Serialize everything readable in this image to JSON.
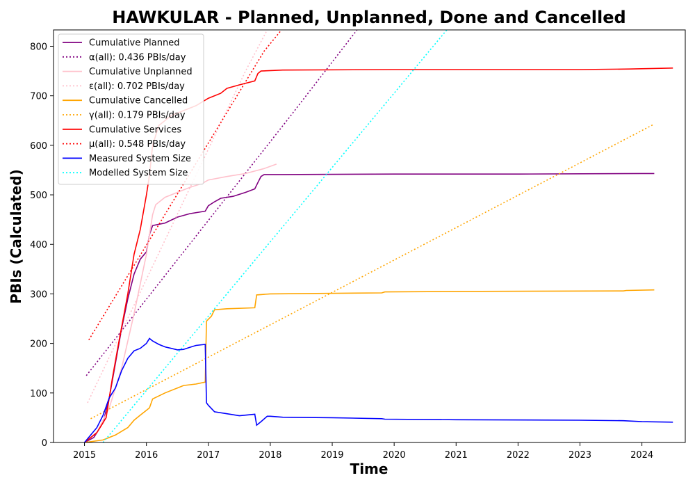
{
  "chart_data": {
    "type": "line",
    "title": "HAWKULAR - Planned, Unplanned, Done  and Cancelled",
    "xlabel": "Time",
    "ylabel": "PBIs (Calculated)",
    "xlim": [
      2014.5,
      2024.7
    ],
    "ylim": [
      0,
      833
    ],
    "x_ticks": [
      "2015",
      "2016",
      "2017",
      "2018",
      "2019",
      "2020",
      "2021",
      "2022",
      "2023",
      "2024"
    ],
    "y_ticks": [
      "0",
      "100",
      "200",
      "300",
      "400",
      "500",
      "600",
      "700",
      "800"
    ],
    "grid": false,
    "legend_position": "upper-left",
    "series": [
      {
        "name": "Cumulative Planned",
        "color": "#800080",
        "dash": "solid",
        "points": [
          [
            2015.0,
            0
          ],
          [
            2015.15,
            10
          ],
          [
            2015.3,
            40
          ],
          [
            2015.4,
            90
          ],
          [
            2015.5,
            160
          ],
          [
            2015.6,
            230
          ],
          [
            2015.7,
            290
          ],
          [
            2015.8,
            340
          ],
          [
            2015.9,
            370
          ],
          [
            2016.0,
            385
          ],
          [
            2016.05,
            420
          ],
          [
            2016.1,
            438
          ],
          [
            2016.3,
            443
          ],
          [
            2016.5,
            455
          ],
          [
            2016.7,
            462
          ],
          [
            2016.95,
            467
          ],
          [
            2017.0,
            478
          ],
          [
            2017.1,
            486
          ],
          [
            2017.2,
            493
          ],
          [
            2017.4,
            497
          ],
          [
            2017.6,
            505
          ],
          [
            2017.75,
            512
          ],
          [
            2017.8,
            525
          ],
          [
            2017.85,
            537
          ],
          [
            2017.9,
            541
          ],
          [
            2018.2,
            541
          ],
          [
            2020.0,
            542
          ],
          [
            2022.0,
            542
          ],
          [
            2024.0,
            543
          ],
          [
            2024.2,
            543
          ]
        ]
      },
      {
        "name": "α(all): 0.436 PBIs/day",
        "color": "#800080",
        "dash": "dotted",
        "points": [
          [
            2015.03,
            135
          ],
          [
            2018.3,
            655
          ],
          [
            2019.4,
            833
          ]
        ]
      },
      {
        "name": "Cumulative Unplanned",
        "color": "#ffc0cb",
        "dash": "solid",
        "points": [
          [
            2015.0,
            0
          ],
          [
            2015.2,
            20
          ],
          [
            2015.4,
            70
          ],
          [
            2015.6,
            150
          ],
          [
            2015.8,
            260
          ],
          [
            2015.9,
            320
          ],
          [
            2016.0,
            380
          ],
          [
            2016.05,
            420
          ],
          [
            2016.1,
            460
          ],
          [
            2016.15,
            480
          ],
          [
            2016.3,
            495
          ],
          [
            2016.5,
            505
          ],
          [
            2016.7,
            515
          ],
          [
            2016.9,
            523
          ],
          [
            2017.0,
            530
          ],
          [
            2017.3,
            537
          ],
          [
            2017.6,
            543
          ],
          [
            2017.9,
            553
          ],
          [
            2018.1,
            562
          ]
        ]
      },
      {
        "name": "ε(all): 0.702 PBIs/day",
        "color": "#ffc0cb",
        "dash": "dotted",
        "points": [
          [
            2015.05,
            80
          ],
          [
            2017.6,
            750
          ],
          [
            2017.95,
            833
          ]
        ]
      },
      {
        "name": "Cumulative Cancelled",
        "color": "#ffa500",
        "dash": "solid",
        "points": [
          [
            2015.0,
            0
          ],
          [
            2015.3,
            5
          ],
          [
            2015.5,
            15
          ],
          [
            2015.7,
            30
          ],
          [
            2015.8,
            45
          ],
          [
            2015.9,
            55
          ],
          [
            2016.0,
            65
          ],
          [
            2016.05,
            70
          ],
          [
            2016.1,
            88
          ],
          [
            2016.3,
            100
          ],
          [
            2016.5,
            110
          ],
          [
            2016.6,
            115
          ],
          [
            2016.8,
            118
          ],
          [
            2016.95,
            122
          ],
          [
            2016.97,
            245
          ],
          [
            2017.05,
            255
          ],
          [
            2017.1,
            268
          ],
          [
            2017.3,
            270
          ],
          [
            2017.75,
            272
          ],
          [
            2017.78,
            298
          ],
          [
            2018.0,
            300
          ],
          [
            2019.8,
            302
          ],
          [
            2019.85,
            304
          ],
          [
            2021.0,
            305
          ],
          [
            2023.7,
            306
          ],
          [
            2023.75,
            307
          ],
          [
            2024.2,
            308
          ]
        ]
      },
      {
        "name": "γ(all): 0.179 PBIs/day",
        "color": "#ffa500",
        "dash": "dotted",
        "points": [
          [
            2015.1,
            48
          ],
          [
            2024.2,
            643
          ]
        ]
      },
      {
        "name": "Cumulative Services",
        "color": "#ff0000",
        "dash": "solid",
        "points": [
          [
            2015.0,
            0
          ],
          [
            2015.2,
            20
          ],
          [
            2015.35,
            50
          ],
          [
            2015.45,
            130
          ],
          [
            2015.55,
            200
          ],
          [
            2015.7,
            300
          ],
          [
            2015.8,
            380
          ],
          [
            2015.9,
            430
          ],
          [
            2016.0,
            500
          ],
          [
            2016.05,
            540
          ],
          [
            2016.1,
            600
          ],
          [
            2016.2,
            640
          ],
          [
            2016.4,
            660
          ],
          [
            2016.6,
            670
          ],
          [
            2016.8,
            680
          ],
          [
            2017.0,
            695
          ],
          [
            2017.2,
            705
          ],
          [
            2017.3,
            715
          ],
          [
            2017.5,
            722
          ],
          [
            2017.75,
            730
          ],
          [
            2017.8,
            745
          ],
          [
            2017.85,
            750
          ],
          [
            2018.2,
            752
          ],
          [
            2020.0,
            753
          ],
          [
            2023.0,
            753
          ],
          [
            2023.8,
            754
          ],
          [
            2024.5,
            756
          ]
        ]
      },
      {
        "name": "μ(all): 0.548 PBIs/day",
        "color": "#ff0000",
        "dash": "dotted",
        "points": [
          [
            2015.07,
            207
          ],
          [
            2017.9,
            790
          ],
          [
            2018.18,
            833
          ]
        ]
      },
      {
        "name": "Measured System Size",
        "color": "#0000ff",
        "dash": "solid",
        "points": [
          [
            2015.0,
            0
          ],
          [
            2015.1,
            15
          ],
          [
            2015.2,
            30
          ],
          [
            2015.3,
            55
          ],
          [
            2015.4,
            90
          ],
          [
            2015.5,
            110
          ],
          [
            2015.6,
            145
          ],
          [
            2015.7,
            170
          ],
          [
            2015.8,
            185
          ],
          [
            2015.9,
            190
          ],
          [
            2016.0,
            200
          ],
          [
            2016.05,
            210
          ],
          [
            2016.1,
            205
          ],
          [
            2016.2,
            198
          ],
          [
            2016.3,
            193
          ],
          [
            2016.4,
            190
          ],
          [
            2016.5,
            187
          ],
          [
            2016.6,
            188
          ],
          [
            2016.7,
            192
          ],
          [
            2016.8,
            196
          ],
          [
            2016.95,
            198
          ],
          [
            2016.97,
            80
          ],
          [
            2017.0,
            75
          ],
          [
            2017.1,
            62
          ],
          [
            2017.3,
            58
          ],
          [
            2017.5,
            54
          ],
          [
            2017.75,
            57
          ],
          [
            2017.78,
            35
          ],
          [
            2017.85,
            42
          ],
          [
            2017.95,
            53
          ],
          [
            2018.0,
            53
          ],
          [
            2018.2,
            51
          ],
          [
            2019.0,
            50
          ],
          [
            2019.8,
            48
          ],
          [
            2019.85,
            47
          ],
          [
            2021.0,
            46
          ],
          [
            2023.0,
            45
          ],
          [
            2023.7,
            44
          ],
          [
            2024.0,
            42
          ],
          [
            2024.5,
            41
          ]
        ]
      },
      {
        "name": "Modelled System Size",
        "color": "#00ffff",
        "dash": "dotted",
        "points": [
          [
            2015.3,
            0
          ],
          [
            2020.85,
            833
          ]
        ]
      }
    ]
  }
}
